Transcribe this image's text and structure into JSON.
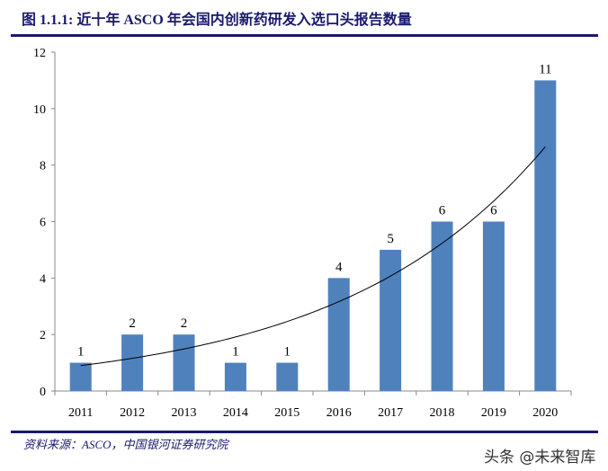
{
  "title": "图 1.1.1: 近十年 ASCO 年会国内创新药研发入选口头报告数量",
  "source": "资料来源：ASCO，中国银河证券研究院",
  "watermark": "头条 @未来智库",
  "colors": {
    "bar": "#4f81bd",
    "title": "#1a1a6e",
    "trendline": "#000000"
  },
  "chart_data": {
    "type": "bar",
    "title": "",
    "xlabel": "",
    "ylabel": "",
    "categories": [
      "2011",
      "2012",
      "2013",
      "2014",
      "2015",
      "2016",
      "2017",
      "2018",
      "2019",
      "2020"
    ],
    "values": [
      1,
      2,
      2,
      1,
      1,
      4,
      5,
      6,
      6,
      11
    ],
    "data_labels": [
      "1",
      "2",
      "2",
      "1",
      "1",
      "4",
      "5",
      "6",
      "6",
      "11"
    ],
    "ylim": [
      0,
      12
    ],
    "yticks": [
      0,
      2,
      4,
      6,
      8,
      10,
      12
    ],
    "grid": false,
    "legend": "none",
    "trendline": {
      "type": "exponential",
      "start_value": 0.9,
      "end_value": 8.65
    }
  }
}
